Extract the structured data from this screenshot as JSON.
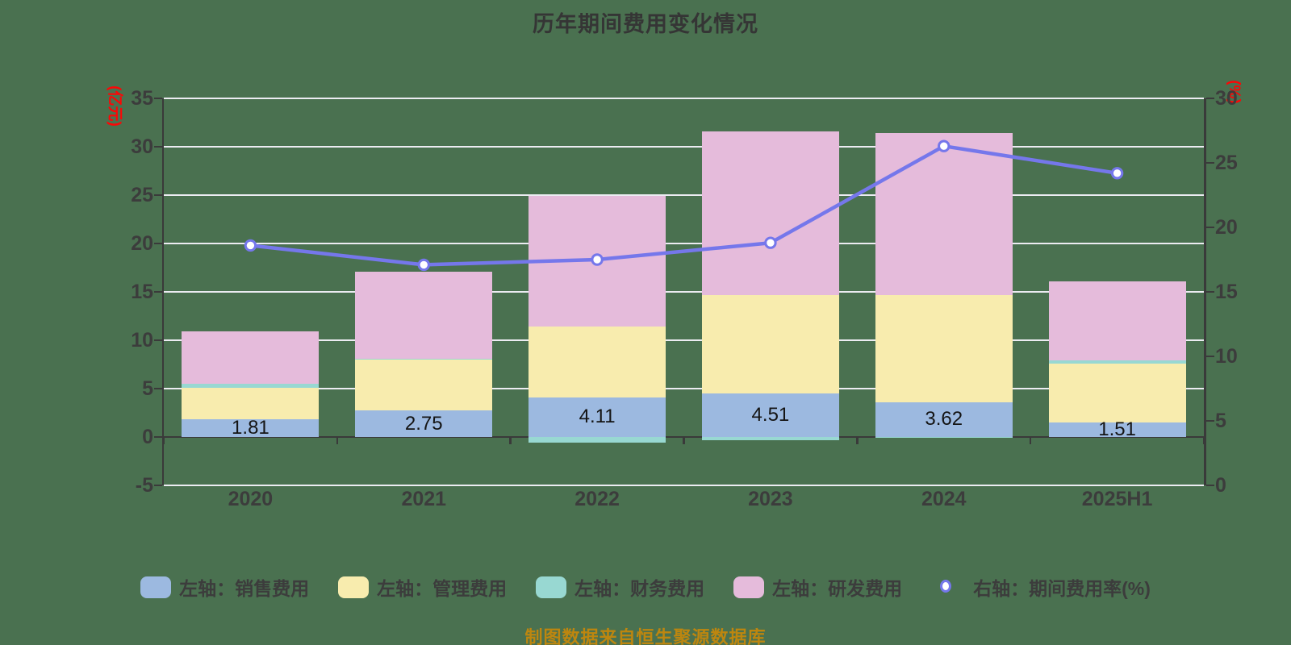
{
  "title": "历年期间费用变化情况",
  "footer": "制图数据来自恒生聚源数据库",
  "legend": [
    {
      "label": "左轴：销售费用",
      "color": "#9CB9E0",
      "kind": "bar"
    },
    {
      "label": "左轴：管理费用",
      "color": "#F8ECAE",
      "kind": "bar"
    },
    {
      "label": "左轴：财务费用",
      "color": "#98D8D2",
      "kind": "bar"
    },
    {
      "label": "左轴：研发费用",
      "color": "#E5BBDB",
      "kind": "bar"
    },
    {
      "label": "右轴：期间费用率(%)",
      "color": "#7577EB",
      "kind": "line"
    }
  ],
  "chart_data": {
    "type": "bar",
    "subtype": "stacked-bar-with-line",
    "categories": [
      "2020",
      "2021",
      "2022",
      "2023",
      "2024",
      "2025H1"
    ],
    "bar_series": [
      {
        "name": "左轴：销售费用",
        "color": "#9CB9E0",
        "values": [
          1.81,
          2.75,
          4.11,
          4.51,
          3.62,
          1.51
        ]
      },
      {
        "name": "左轴：管理费用",
        "color": "#F8ECAE",
        "values": [
          3.24,
          5.25,
          7.34,
          10.19,
          11.05,
          6.11
        ]
      },
      {
        "name": "左轴：财务费用",
        "color": "#98D8D2",
        "values": [
          0.45,
          0.05,
          -0.62,
          -0.33,
          -0.02,
          0.27
        ]
      },
      {
        "name": "左轴：研发费用",
        "color": "#E5BBDB",
        "values": [
          5.45,
          9.05,
          13.5,
          16.85,
          16.73,
          8.16
        ]
      }
    ],
    "bar_labels": [
      "1.81",
      "2.75",
      "4.11",
      "4.51",
      "3.62",
      "1.51"
    ],
    "line_series": {
      "name": "右轴：期间费用率(%)",
      "color": "#7577EB",
      "values": [
        18.6,
        17.1,
        17.5,
        18.8,
        26.3,
        24.2
      ]
    },
    "left_axis": {
      "name": "(亿元)",
      "min": -5,
      "max": 35,
      "ticks": [
        35,
        30,
        25,
        20,
        15,
        10,
        5,
        0,
        -5
      ],
      "name_color": "#FE0505"
    },
    "right_axis": {
      "name": "(%)",
      "min": 0,
      "max": 30,
      "ticks": [
        30,
        25,
        20,
        15,
        10,
        5,
        0
      ],
      "name_color": "#FE0505"
    },
    "grid": "horizontal",
    "legend_position": "bottom"
  },
  "colors": {
    "background": "#4A7150",
    "gridline": "#ECECF2",
    "axis": "#3A3A3A",
    "text": "#3C3C3C",
    "bar_label": "#141414",
    "footer": "#BD860F"
  }
}
